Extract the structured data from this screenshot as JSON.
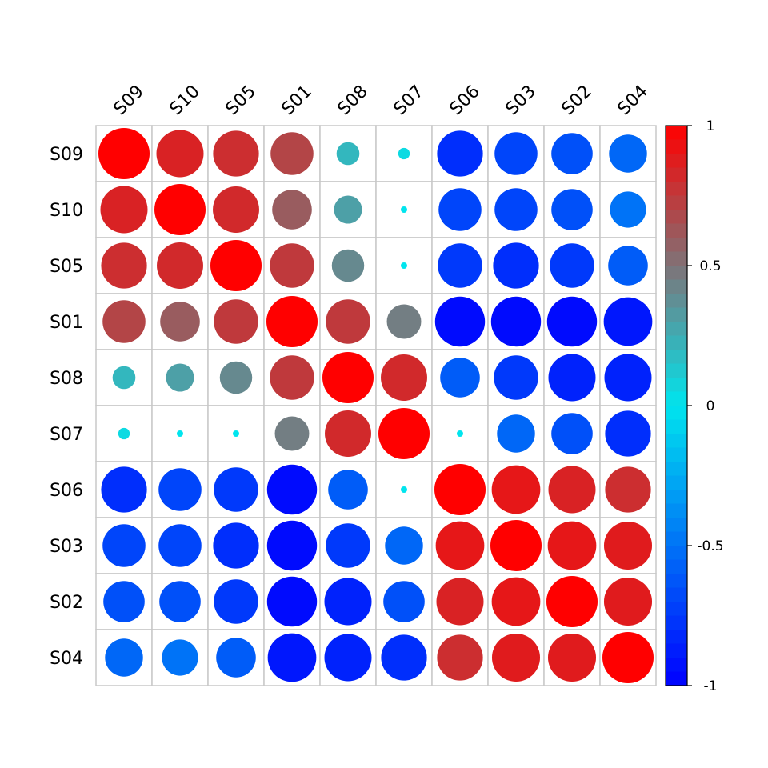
{
  "chart_data": {
    "type": "heatmap",
    "title": "",
    "xlabel": "",
    "ylabel": "",
    "labels": [
      "S09",
      "S10",
      "S05",
      "S01",
      "S08",
      "S07",
      "S06",
      "S03",
      "S02",
      "S04"
    ],
    "values": [
      [
        1.0,
        0.85,
        0.8,
        0.7,
        0.2,
        0.05,
        -0.8,
        -0.7,
        -0.65,
        -0.55
      ],
      [
        0.85,
        1.0,
        0.82,
        0.6,
        0.3,
        0.0,
        -0.7,
        -0.7,
        -0.65,
        -0.5
      ],
      [
        0.8,
        0.82,
        1.0,
        0.75,
        0.4,
        0.0,
        -0.75,
        -0.8,
        -0.75,
        -0.6
      ],
      [
        0.7,
        0.6,
        0.75,
        1.0,
        0.75,
        0.45,
        -0.95,
        -0.95,
        -0.95,
        -0.9
      ],
      [
        0.2,
        0.3,
        0.4,
        0.75,
        1.0,
        0.82,
        -0.6,
        -0.75,
        -0.85,
        -0.85
      ],
      [
        0.05,
        0.0,
        0.0,
        0.45,
        0.82,
        1.0,
        0.0,
        -0.55,
        -0.65,
        -0.8
      ],
      [
        -0.8,
        -0.7,
        -0.75,
        -0.95,
        -0.6,
        0.0,
        1.0,
        0.9,
        0.85,
        0.8
      ],
      [
        -0.7,
        -0.7,
        -0.8,
        -0.95,
        -0.75,
        -0.55,
        0.9,
        1.0,
        0.9,
        0.88
      ],
      [
        -0.65,
        -0.65,
        -0.75,
        -0.95,
        -0.85,
        -0.65,
        0.85,
        0.9,
        1.0,
        0.88
      ],
      [
        -0.55,
        -0.5,
        -0.6,
        -0.9,
        -0.85,
        -0.8,
        0.8,
        0.88,
        0.88,
        1.0
      ]
    ],
    "value_range": [
      -1,
      1
    ],
    "colorbar": {
      "ticks": [
        1,
        0.5,
        0,
        -0.5,
        -1
      ],
      "tick_labels": [
        "1",
        "0.5",
        "0",
        "-0.5",
        "-1"
      ],
      "colors": {
        "low": "#0000ff",
        "mid": "#00e5ee",
        "high": "#ff0000"
      }
    },
    "grid": true,
    "legend_placement": "right"
  }
}
